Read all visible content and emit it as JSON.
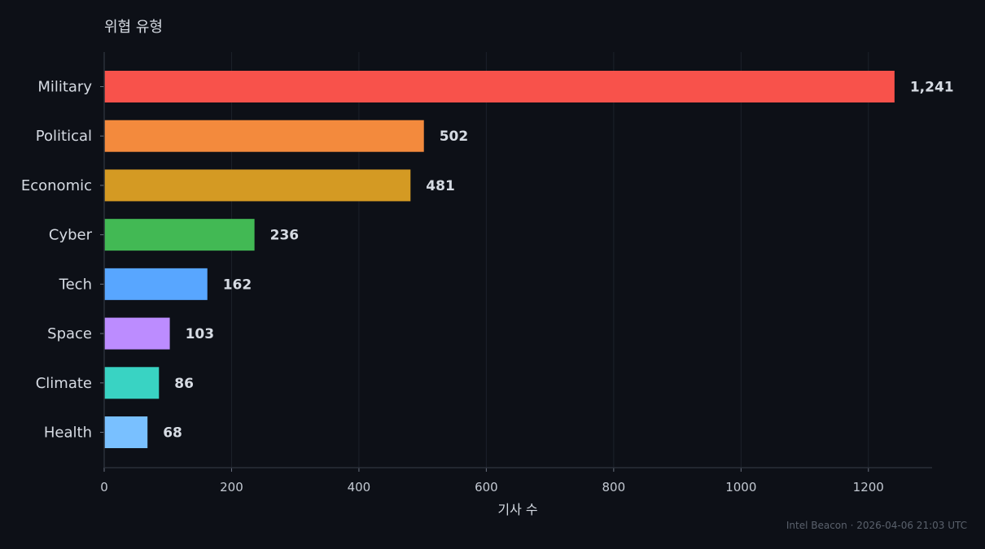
{
  "chart_data": {
    "type": "bar",
    "orientation": "horizontal",
    "title": "위협 유형",
    "xlabel": "기사 수",
    "ylabel": "",
    "categories": [
      "Military",
      "Political",
      "Economic",
      "Cyber",
      "Tech",
      "Space",
      "Climate",
      "Health"
    ],
    "values": [
      1241,
      502,
      481,
      236,
      162,
      103,
      86,
      68
    ],
    "value_labels": [
      "1,241",
      "502",
      "481",
      "236",
      "162",
      "103",
      "86",
      "68"
    ],
    "colors": [
      "#f8524b",
      "#f38a3d",
      "#d49a23",
      "#42b954",
      "#58a6ff",
      "#bc8cff",
      "#39d3c3",
      "#79c0ff"
    ],
    "xlim": [
      0,
      1300
    ],
    "xticks": [
      0,
      200,
      400,
      600,
      800,
      1000,
      1200
    ],
    "grid": "vertical",
    "legend": "none"
  },
  "footer": {
    "source": "Intel Beacon",
    "separator": "·",
    "timestamp": "2026-04-06 21:03 UTC"
  }
}
